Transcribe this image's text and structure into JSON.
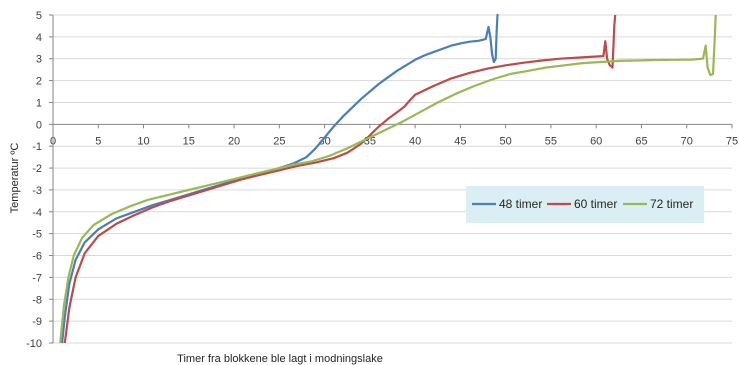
{
  "chart_data": {
    "type": "line",
    "xlabel": "Timer fra blokkene ble lagt i modningslake",
    "ylabel": "Temperatur ºC",
    "xlim": [
      0,
      75
    ],
    "ylim": [
      -10,
      5
    ],
    "x_ticks": [
      "0",
      "5",
      "10",
      "15",
      "20",
      "25",
      "30",
      "35",
      "40",
      "45",
      "50",
      "55",
      "60",
      "65",
      "70",
      "75"
    ],
    "y_ticks": [
      "5",
      "4",
      "3",
      "2",
      "1",
      "0",
      "-1",
      "-2",
      "-3",
      "-4",
      "-5",
      "-6",
      "-7",
      "-8",
      "-9",
      "-10"
    ],
    "grid": "horizontal",
    "legend_position": "right",
    "colors": {
      "axis": "#868686",
      "grid": "#d9d9d9",
      "legend_bg": "#dbeef4"
    },
    "series": [
      {
        "name": "48 timer",
        "color": "#4a7ebb",
        "x": [
          1.0,
          1.3,
          1.8,
          2.5,
          3.5,
          5,
          7,
          9,
          11,
          13,
          15,
          17,
          19,
          21,
          23,
          25,
          26.5,
          28,
          29,
          30,
          31,
          32,
          33,
          34,
          35,
          36,
          37,
          38,
          39,
          40,
          41,
          42,
          43,
          44,
          45,
          46,
          47,
          47.8,
          48.1,
          48.3,
          48.5,
          48.7,
          48.9,
          49.0,
          49.1,
          49.2
        ],
        "y": [
          -10,
          -8.8,
          -7.3,
          -6.2,
          -5.4,
          -4.8,
          -4.3,
          -4.0,
          -3.7,
          -3.45,
          -3.2,
          -2.95,
          -2.7,
          -2.45,
          -2.25,
          -2.0,
          -1.8,
          -1.5,
          -1.1,
          -0.6,
          -0.1,
          0.35,
          0.75,
          1.15,
          1.5,
          1.85,
          2.15,
          2.45,
          2.7,
          2.95,
          3.15,
          3.3,
          3.45,
          3.6,
          3.7,
          3.78,
          3.82,
          3.9,
          4.45,
          4.0,
          3.2,
          2.85,
          3.0,
          4.2,
          5.0,
          5.0
        ]
      },
      {
        "name": "60 timer",
        "color": "#be4b48",
        "x": [
          1.3,
          1.8,
          2.5,
          3.5,
          5,
          7,
          9,
          11,
          13,
          15,
          17,
          19,
          21,
          23,
          25,
          27,
          29,
          31,
          32.5,
          34,
          35,
          36,
          37,
          38,
          38.8,
          39.2,
          40,
          42,
          44,
          46,
          48,
          50,
          52,
          54,
          56,
          58,
          60,
          60.8,
          61.0,
          61.2,
          61.5,
          61.8,
          62.0,
          62.1
        ],
        "y": [
          -10,
          -8.4,
          -7.0,
          -5.9,
          -5.1,
          -4.55,
          -4.15,
          -3.8,
          -3.5,
          -3.25,
          -3.0,
          -2.75,
          -2.5,
          -2.3,
          -2.1,
          -1.9,
          -1.75,
          -1.55,
          -1.3,
          -0.9,
          -0.5,
          -0.1,
          0.25,
          0.55,
          0.8,
          1.0,
          1.35,
          1.75,
          2.1,
          2.35,
          2.55,
          2.7,
          2.82,
          2.92,
          3.0,
          3.05,
          3.1,
          3.12,
          3.8,
          3.0,
          2.7,
          2.6,
          4.5,
          5.0
        ]
      },
      {
        "name": "72 timer",
        "color": "#98b954",
        "x": [
          0.8,
          1.2,
          1.7,
          2.3,
          3.2,
          4.5,
          6.5,
          8.5,
          10.5,
          12.5,
          14.5,
          16.5,
          18.5,
          20.5,
          22.5,
          24.5,
          26.5,
          28.5,
          30.5,
          32.5,
          34.5,
          36.5,
          38.5,
          40.5,
          42.5,
          44.5,
          46.5,
          48.5,
          50.5,
          52.5,
          54.5,
          56.5,
          58.5,
          60.5,
          62.5,
          64.5,
          66.5,
          68.5,
          70.5,
          71.8,
          72.1,
          72.3,
          72.6,
          72.9,
          73.1,
          73.2
        ],
        "y": [
          -10,
          -8.3,
          -7.0,
          -6.0,
          -5.2,
          -4.6,
          -4.1,
          -3.75,
          -3.45,
          -3.25,
          -3.05,
          -2.85,
          -2.65,
          -2.45,
          -2.25,
          -2.05,
          -1.85,
          -1.7,
          -1.45,
          -1.1,
          -0.7,
          -0.3,
          0.1,
          0.55,
          1.0,
          1.4,
          1.75,
          2.05,
          2.3,
          2.45,
          2.6,
          2.7,
          2.8,
          2.85,
          2.9,
          2.92,
          2.94,
          2.95,
          2.96,
          3.0,
          3.6,
          2.6,
          2.25,
          2.3,
          4.0,
          5.0
        ]
      }
    ]
  }
}
